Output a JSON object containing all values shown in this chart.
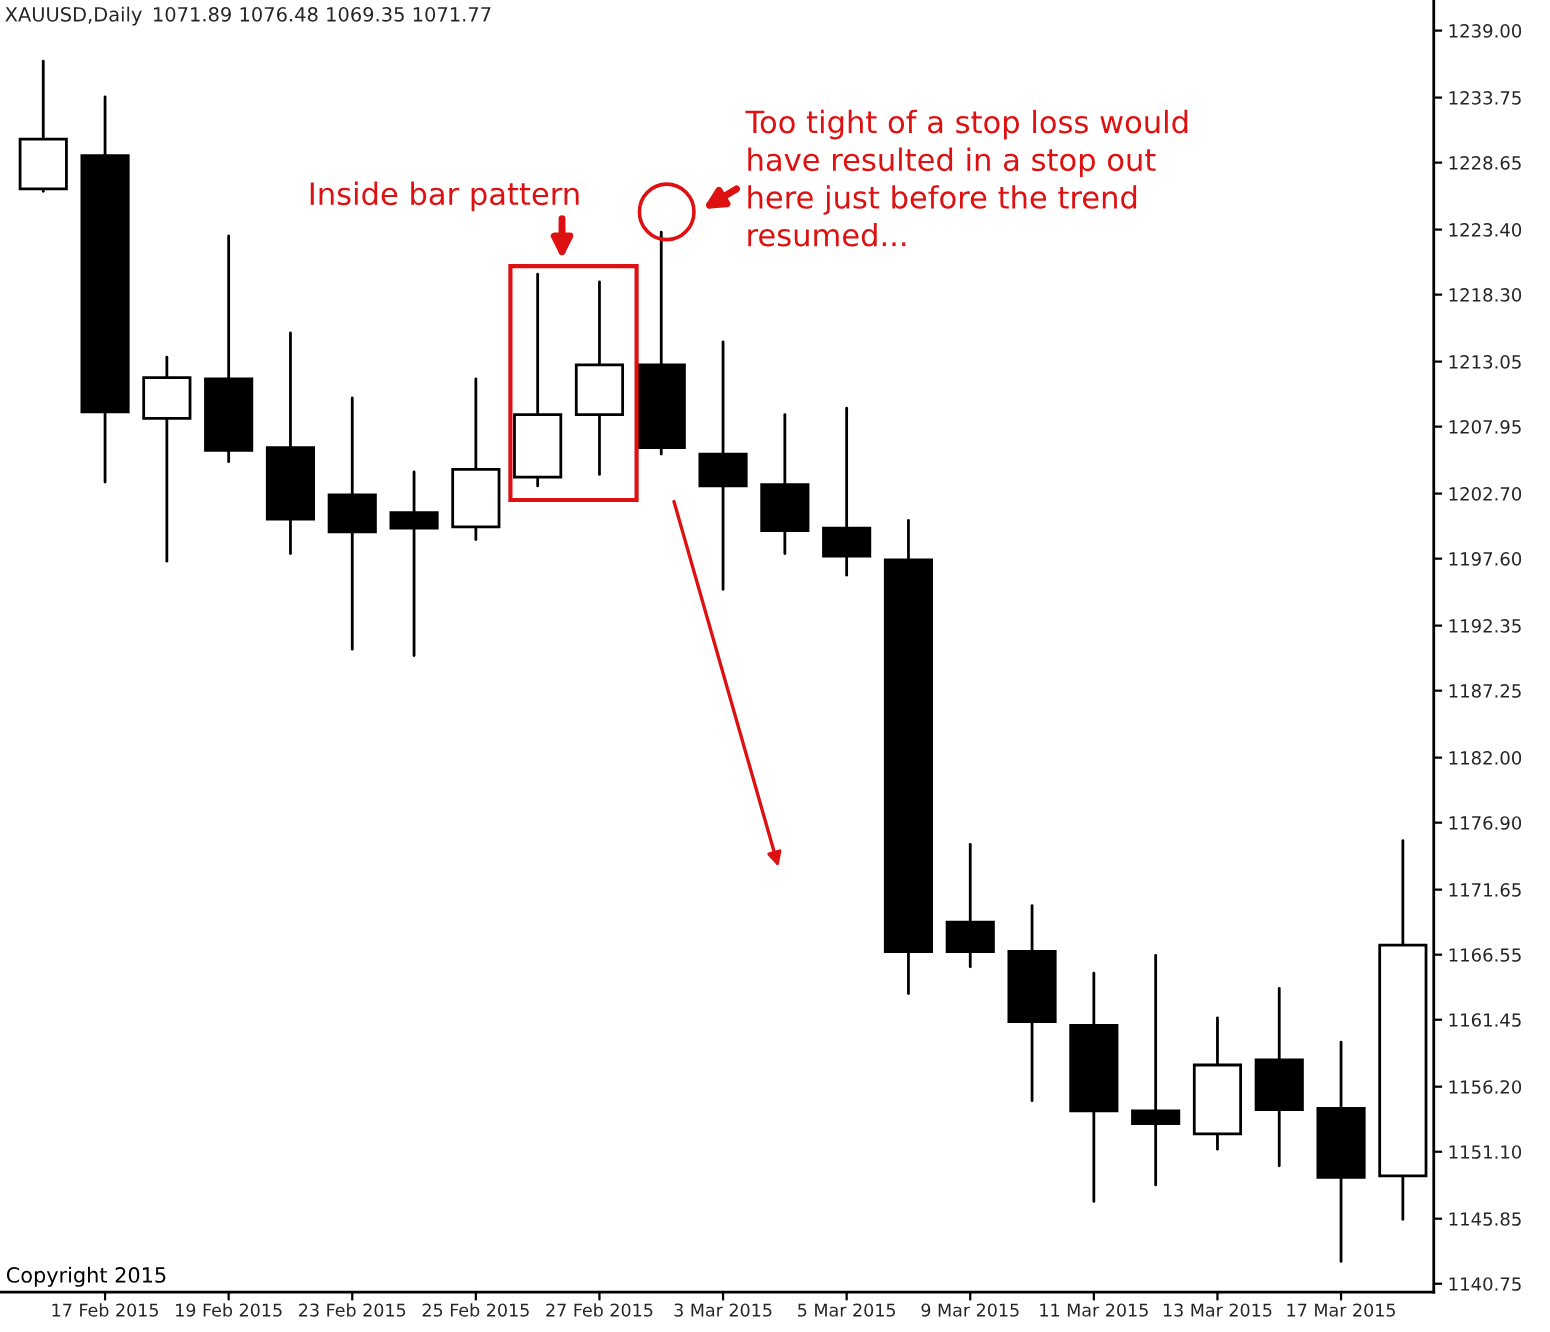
{
  "chart_data": {
    "type": "candlestick",
    "title": "XAUUSD,Daily",
    "subtitle": "1071.89 1076.48 1069.35 1071.77",
    "categories": [
      null,
      "17 Feb 2015",
      null,
      "19 Feb 2015",
      null,
      "23 Feb 2015",
      null,
      "25 Feb 2015",
      null,
      "27 Feb 2015",
      null,
      "3 Mar 2015",
      null,
      "5 Mar 2015",
      null,
      "9 Mar 2015",
      null,
      "11 Mar 2015",
      null,
      "13 Mar 2015",
      null,
      "17 Mar 2015",
      null
    ],
    "ohlc": [
      [
        1226.6,
        1236.6,
        1226.4,
        1230.5
      ],
      [
        1229.2,
        1233.8,
        1203.6,
        1209.1
      ],
      [
        1208.6,
        1213.4,
        1197.4,
        1211.8
      ],
      [
        1211.7,
        1222.9,
        1205.2,
        1206.1
      ],
      [
        1206.3,
        1215.3,
        1198.0,
        1200.7
      ],
      [
        1202.6,
        1210.2,
        1190.5,
        1199.7
      ],
      [
        1201.2,
        1204.4,
        1190.0,
        1200.0
      ],
      [
        1200.1,
        1211.7,
        1199.1,
        1204.6
      ],
      [
        1204.0,
        1219.9,
        1203.3,
        1208.9
      ],
      [
        1208.9,
        1219.3,
        1204.2,
        1212.8
      ],
      [
        1212.8,
        1223.2,
        1205.8,
        1206.3
      ],
      [
        1205.8,
        1214.6,
        1195.2,
        1203.3
      ],
      [
        1203.4,
        1208.9,
        1198.0,
        1199.8
      ],
      [
        1200.0,
        1209.4,
        1196.3,
        1197.8
      ],
      [
        1197.5,
        1200.6,
        1163.5,
        1166.8
      ],
      [
        1169.1,
        1175.2,
        1165.6,
        1166.8
      ],
      [
        1166.8,
        1170.4,
        1155.1,
        1161.3
      ],
      [
        1161.0,
        1165.1,
        1147.2,
        1154.3
      ],
      [
        1154.3,
        1166.5,
        1148.5,
        1153.3
      ],
      [
        1152.5,
        1161.6,
        1151.3,
        1157.9
      ],
      [
        1158.3,
        1163.9,
        1150.0,
        1154.4
      ],
      [
        1154.5,
        1159.7,
        1142.5,
        1149.1
      ],
      [
        1149.2,
        1175.5,
        1145.8,
        1167.3
      ]
    ],
    "colors": [
      "#ffffff",
      "#000000",
      "#ffffff",
      "#000000",
      "#000000",
      "#000000",
      "#000000",
      "#ffffff",
      "#ffffff",
      "#ffffff",
      "#000000",
      "#000000",
      "#000000",
      "#000000",
      "#000000",
      "#000000",
      "#000000",
      "#000000",
      "#000000",
      "#ffffff",
      "#000000",
      "#000000",
      "#ffffff"
    ],
    "ylim": [
      1140.1,
      1241.4
    ],
    "yticks": [
      {
        "value": 1239.0,
        "label": "1239.00"
      },
      {
        "value": 1233.75,
        "label": "1233.75"
      },
      {
        "value": 1228.65,
        "label": "1228.65"
      },
      {
        "value": 1223.4,
        "label": "1223.40"
      },
      {
        "value": 1218.3,
        "label": "1218.30"
      },
      {
        "value": 1213.05,
        "label": "1213.05"
      },
      {
        "value": 1207.95,
        "label": "1207.95"
      },
      {
        "value": 1202.7,
        "label": "1202.70"
      },
      {
        "value": 1197.6,
        "label": "1197.60"
      },
      {
        "value": 1192.35,
        "label": "1192.35"
      },
      {
        "value": 1187.25,
        "label": "1187.25"
      },
      {
        "value": 1182.0,
        "label": "1182.00"
      },
      {
        "value": 1176.9,
        "label": "1176.90"
      },
      {
        "value": 1171.65,
        "label": "1171.65"
      },
      {
        "value": 1166.55,
        "label": "1166.55"
      },
      {
        "value": 1161.45,
        "label": "1161.45"
      },
      {
        "value": 1156.2,
        "label": "1156.20"
      },
      {
        "value": 1151.1,
        "label": "1151.10"
      },
      {
        "value": 1145.85,
        "label": "1145.85"
      },
      {
        "value": 1140.75,
        "label": "1140.75"
      }
    ],
    "annotations": [
      "Inside bar pattern",
      "Too tight of a stop loss would\nhave resulted in a stop out\nhere just before the trend\nresumed...",
      "Copyright 2015"
    ]
  }
}
